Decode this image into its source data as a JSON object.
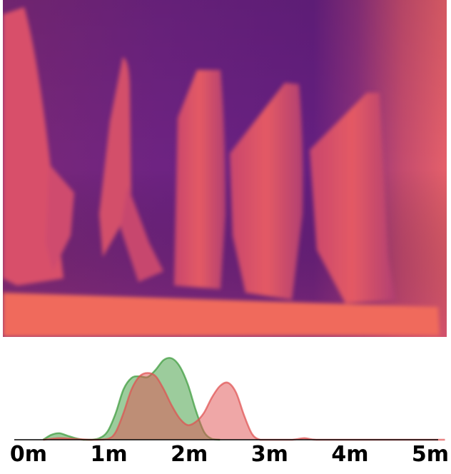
{
  "chart_data": {
    "type": "area",
    "kind": "density-distribution",
    "title": "",
    "xlabel": "",
    "ylabel": "",
    "x_ticks": [
      "0m",
      "1m",
      "2m",
      "3m",
      "4m",
      "5m"
    ],
    "x_tick_values": [
      0,
      1,
      2,
      3,
      4,
      5
    ],
    "xlim": [
      -0.1,
      5.3
    ],
    "ylim": [
      0,
      1
    ],
    "grid": false,
    "legend": "none",
    "series": [
      {
        "color": "#3a9a3a",
        "x": [
          0.2,
          0.3,
          0.4,
          0.5,
          0.6,
          0.7,
          0.8,
          0.9,
          1.0,
          1.1,
          1.2,
          1.3,
          1.4,
          1.5,
          1.6,
          1.7,
          1.8,
          1.9,
          2.0,
          2.1,
          2.2,
          2.3,
          2.4
        ],
        "y": [
          0.0,
          0.06,
          0.08,
          0.05,
          0.02,
          0.0,
          0.0,
          0.02,
          0.1,
          0.32,
          0.62,
          0.76,
          0.78,
          0.77,
          0.86,
          0.98,
          1.0,
          0.9,
          0.68,
          0.36,
          0.1,
          0.01,
          0.0
        ]
      },
      {
        "color": "#e05050",
        "x": [
          0.2,
          0.4,
          0.6,
          0.8,
          1.0,
          1.1,
          1.2,
          1.3,
          1.4,
          1.5,
          1.6,
          1.7,
          1.8,
          1.9,
          2.0,
          2.1,
          2.2,
          2.3,
          2.4,
          2.5,
          2.6,
          2.7,
          2.8,
          2.9,
          3.0,
          3.3,
          3.45,
          3.6,
          4.0,
          5.0,
          5.2
        ],
        "y": [
          0.0,
          0.02,
          0.01,
          0.0,
          0.01,
          0.09,
          0.33,
          0.62,
          0.78,
          0.82,
          0.78,
          0.62,
          0.42,
          0.26,
          0.18,
          0.22,
          0.33,
          0.52,
          0.66,
          0.7,
          0.58,
          0.3,
          0.07,
          0.0,
          0.0,
          0.0,
          0.02,
          0.0,
          0.0,
          0.0,
          0.0
        ]
      }
    ]
  }
}
